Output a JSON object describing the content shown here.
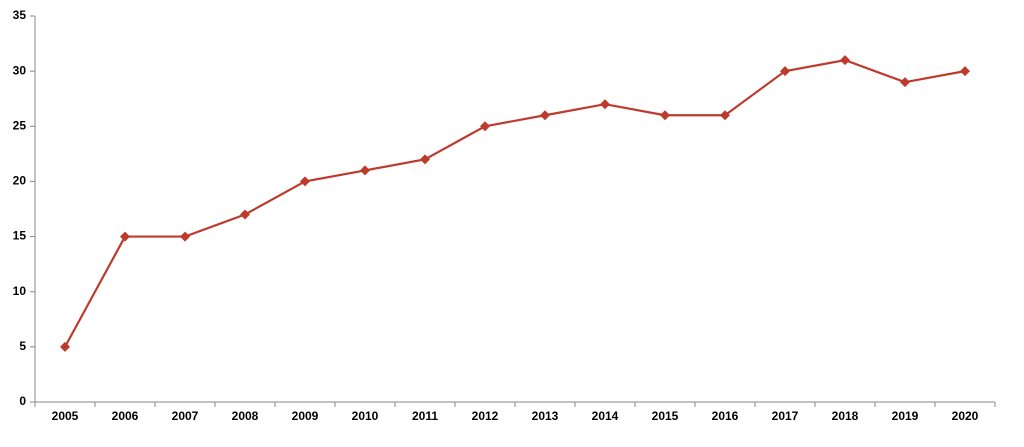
{
  "chart_data": {
    "type": "line",
    "categories": [
      "2005",
      "2006",
      "2007",
      "2008",
      "2009",
      "2010",
      "2011",
      "2012",
      "2013",
      "2014",
      "2015",
      "2016",
      "2017",
      "2018",
      "2019",
      "2020"
    ],
    "values": [
      5,
      15,
      15,
      17,
      20,
      21,
      22,
      25,
      26,
      27,
      26,
      26,
      30,
      31,
      29,
      30
    ],
    "color": "#be3a2c",
    "ylim": [
      0,
      35
    ],
    "yticks": [
      0,
      5,
      10,
      15,
      20,
      25,
      30,
      35
    ],
    "grid": false
  }
}
